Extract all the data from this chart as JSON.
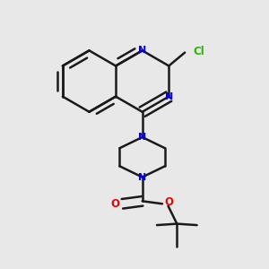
{
  "bg_color": "#e8e8e8",
  "bond_color": "#1a1a1a",
  "nitrogen_color": "#0000ee",
  "oxygen_color": "#ee0000",
  "chlorine_color": "#22bb00",
  "bond_width": 1.8,
  "figsize": [
    3.0,
    3.0
  ],
  "dpi": 100,
  "xlim": [
    0.0,
    1.0
  ],
  "ylim": [
    0.0,
    1.0
  ]
}
